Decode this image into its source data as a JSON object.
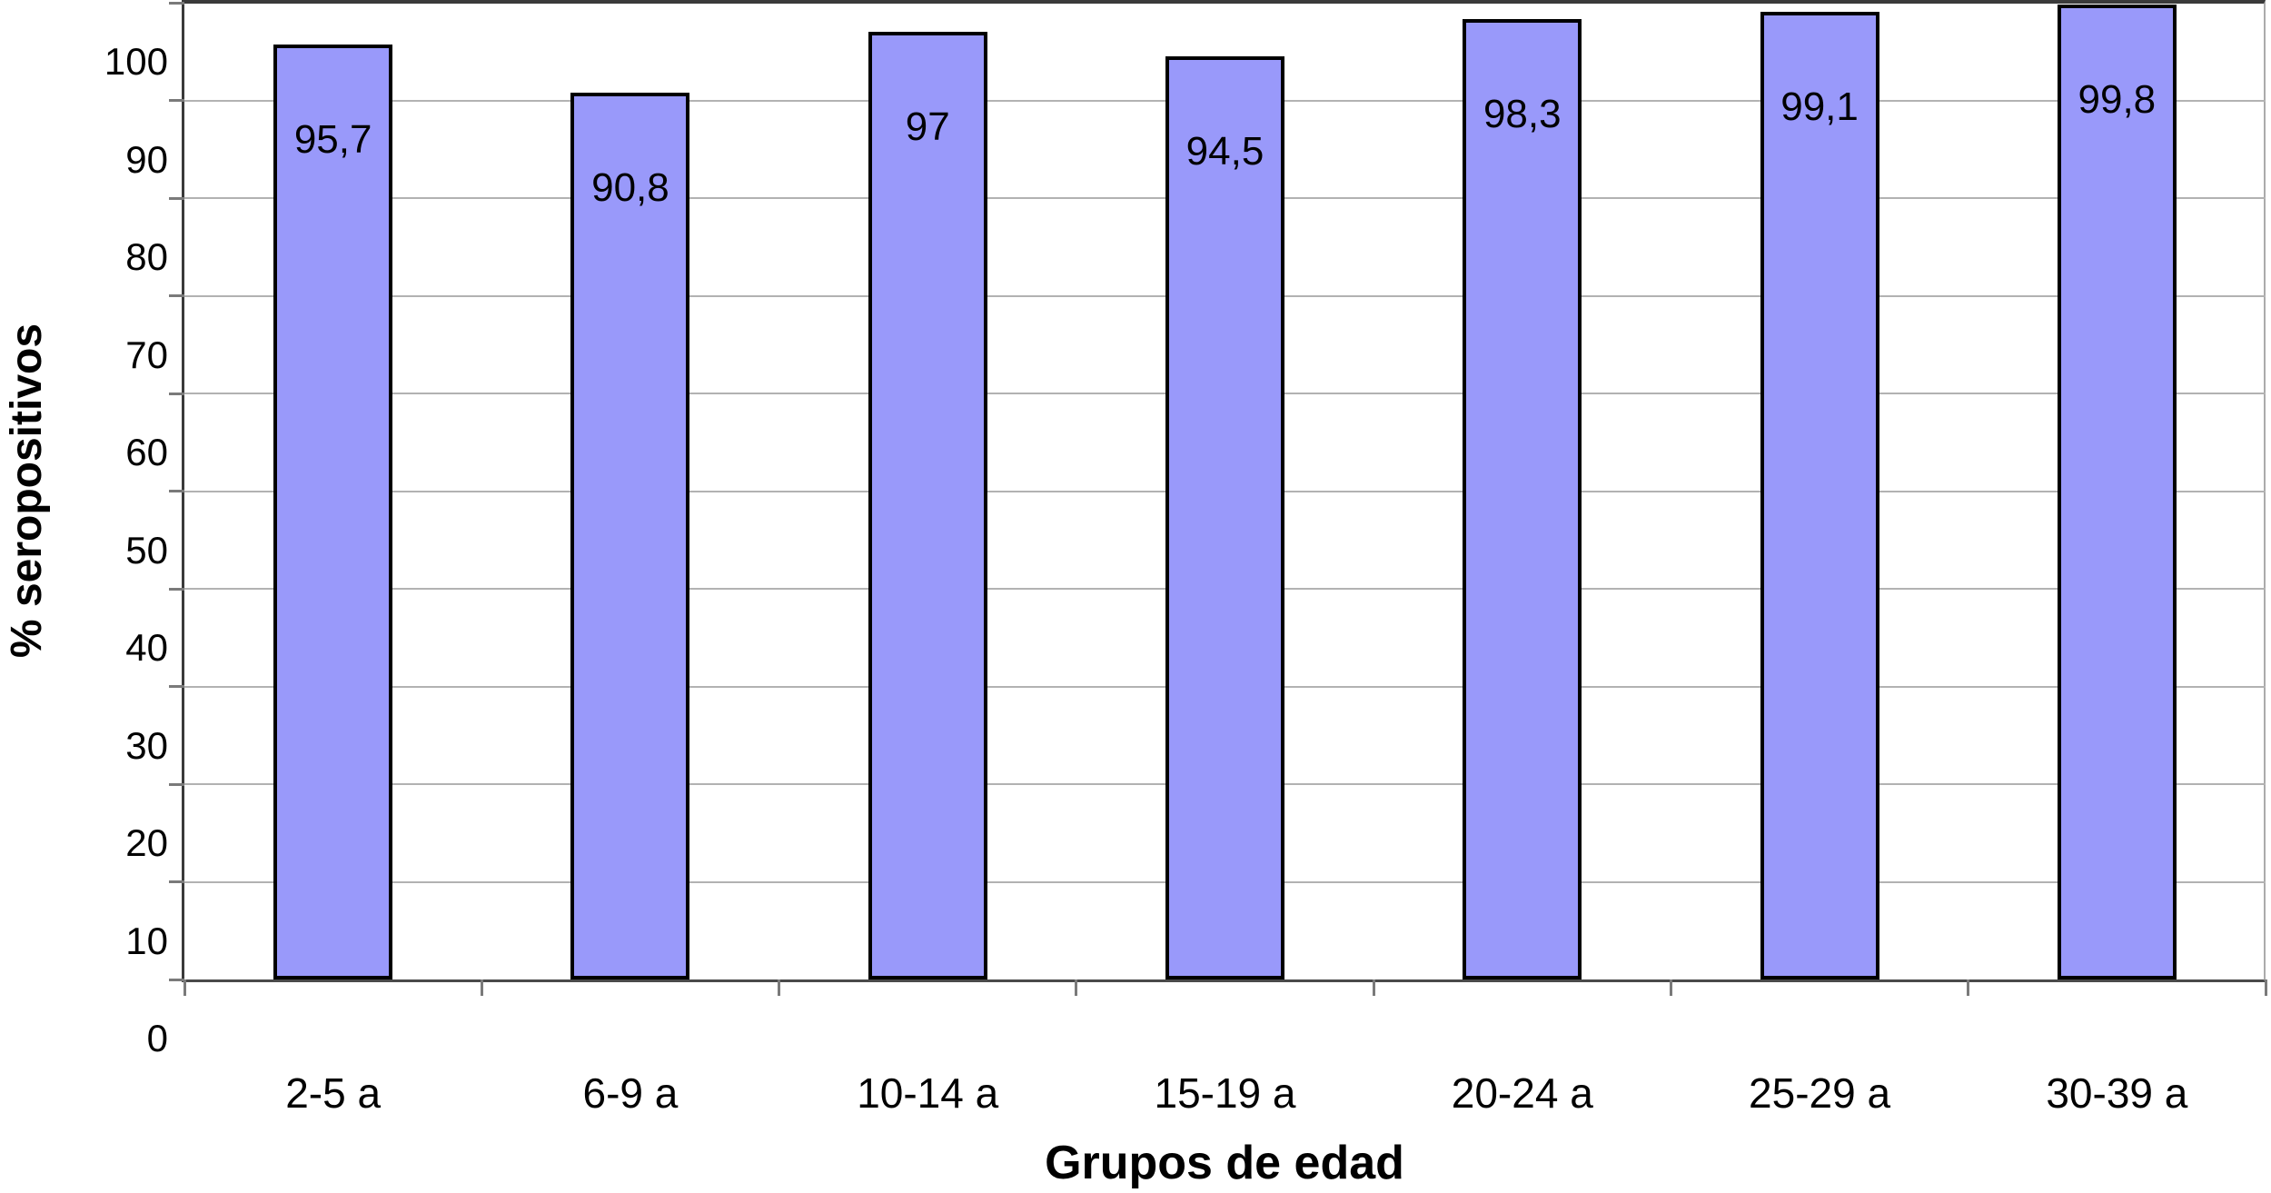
{
  "chart_data": {
    "type": "bar",
    "title": "",
    "categories": [
      "2-5 a",
      "6-9 a",
      "10-14 a",
      "15-19 a",
      "20-24 a",
      "25-29 a",
      "30-39 a"
    ],
    "values": [
      95.7,
      90.8,
      97,
      94.5,
      98.3,
      99.1,
      99.8
    ],
    "value_labels": [
      "95,7",
      "90,8",
      "97",
      "94,5",
      "98,3",
      "99,1",
      "99,8"
    ],
    "xlabel": "Grupos de edad",
    "ylabel": "% seropositivos",
    "ylim": [
      0,
      100
    ],
    "ytick_interval": 10,
    "ytick_labels": [
      "0",
      "10",
      "20",
      "30",
      "40",
      "50",
      "60",
      "70",
      "80",
      "90",
      "100"
    ],
    "grid": "horizontal-major",
    "legend": "none",
    "bar_color": "#9999fa",
    "bar_border_color": "#000000",
    "gridline_color": "#b2b2b2",
    "axis_color": "#3a3a3a"
  }
}
